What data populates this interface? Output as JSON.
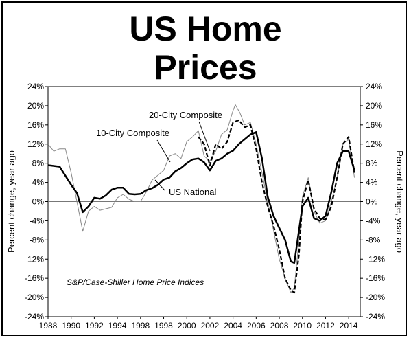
{
  "title_line1": "US Home",
  "title_line2": "Prices",
  "chart_data": {
    "type": "line",
    "title": "US Home Prices",
    "ylabel_left": "Percent change, year ago",
    "ylabel_right": "Percent change, year ago",
    "source_note": "S&P/Case-Shiller Home Price Indices",
    "ylim": [
      -24,
      24
    ],
    "y_ticks": [
      24,
      20,
      16,
      12,
      8,
      4,
      0,
      -4,
      -8,
      -12,
      -16,
      -20,
      -24
    ],
    "y_tick_labels": [
      "24%",
      "20%",
      "16%",
      "12%",
      "8%",
      "4%",
      "0%",
      "-4%",
      "-8%",
      "-12%",
      "-16%",
      "-20%",
      "-24%"
    ],
    "x_tick_labels": [
      "1988",
      "1990",
      "1992",
      "1994",
      "1998",
      "1998",
      "2000",
      "2002",
      "2004",
      "2006",
      "2008",
      "2010",
      "2012",
      "2014"
    ],
    "series": [
      {
        "name": "US National",
        "style": "solid-thick",
        "color": "#000000",
        "x": [
          1988,
          1989,
          1990,
          1990.5,
          1991,
          1991.5,
          1992,
          1992.5,
          1993,
          1993.5,
          1994,
          1994.5,
          1995,
          1995.5,
          1996,
          1996.5,
          1997,
          1997.5,
          1998,
          1998.5,
          1999,
          1999.5,
          2000,
          2000.5,
          2001,
          2001.5,
          2002,
          2002.5,
          2003,
          2003.5,
          2004,
          2004.5,
          2005,
          2005.5,
          2006,
          2006.5,
          2007,
          2007.5,
          2008,
          2008.5,
          2009,
          2009.3,
          2009.7,
          2010,
          2010.5,
          2011,
          2011.5,
          2012,
          2012.5,
          2013,
          2013.5,
          2014,
          2014.5
        ],
        "values": [
          7.6,
          7.3,
          3.5,
          1.8,
          -2.2,
          -1.0,
          0.8,
          0.6,
          1.3,
          2.5,
          2.9,
          2.9,
          1.6,
          1.5,
          1.6,
          2.4,
          2.8,
          3.5,
          4.6,
          5.0,
          6.3,
          7.0,
          8.0,
          8.8,
          9.0,
          8.2,
          6.5,
          8.5,
          9.0,
          10.0,
          10.6,
          12.0,
          13.0,
          14.0,
          14.5,
          9.0,
          1.0,
          -3.0,
          -5.5,
          -8.0,
          -12.5,
          -12.8,
          -6.0,
          -1.0,
          0.8,
          -3.5,
          -4.0,
          -3.0,
          2.0,
          8.0,
          10.5,
          10.5,
          6.5
        ]
      },
      {
        "name": "10-City Composite",
        "style": "solid-thin",
        "color": "#888888",
        "x": [
          1988,
          1988.5,
          1989,
          1989.5,
          1990,
          1990.5,
          1991,
          1991.5,
          1992,
          1992.5,
          1993,
          1993.5,
          1994,
          1994.5,
          1995,
          1995.5,
          1996,
          1996.5,
          1997,
          1997.5,
          1998,
          1998.5,
          1999,
          1999.5,
          2000,
          2000.5,
          2001,
          2001.5,
          2002,
          2002.5,
          2003,
          2003.5,
          2004,
          2004.2,
          2004.6,
          2005,
          2005.5,
          2006,
          2006.5,
          2007,
          2007.5,
          2008,
          2008.5,
          2009,
          2009.3,
          2009.7,
          2010,
          2010.5,
          2011,
          2011.5,
          2012,
          2012.5,
          2013,
          2013.5,
          2014,
          2014.5
        ],
        "values": [
          12.0,
          10.5,
          11.0,
          11.0,
          6.0,
          0.0,
          -6.2,
          -2.0,
          -1.0,
          -1.8,
          -1.5,
          -1.2,
          0.8,
          1.5,
          0.5,
          0.0,
          0.0,
          2.0,
          4.5,
          5.5,
          6.5,
          9.5,
          10.0,
          9.0,
          12.5,
          13.5,
          14.8,
          9.5,
          8.5,
          10.5,
          14.0,
          15.0,
          19.0,
          20.2,
          18.5,
          16.0,
          16.5,
          12.0,
          6.0,
          0.0,
          -6.0,
          -12.0,
          -16.0,
          -19.0,
          -18.0,
          -8.0,
          1.0,
          5.0,
          -2.0,
          -4.5,
          -4.0,
          0.0,
          5.0,
          12.0,
          13.0,
          5.0
        ]
      },
      {
        "name": "20-City Composite",
        "style": "dashed",
        "color": "#000000",
        "x": [
          2001,
          2001.5,
          2002,
          2002.5,
          2003,
          2003.5,
          2004,
          2004.5,
          2005,
          2005.5,
          2006,
          2006.5,
          2007,
          2007.5,
          2008,
          2008.5,
          2009,
          2009.3,
          2009.7,
          2010,
          2010.5,
          2011,
          2011.5,
          2012,
          2012.5,
          2013,
          2013.5,
          2014,
          2014.5
        ],
        "values": [
          13.5,
          12.0,
          7.5,
          12.0,
          11.0,
          12.5,
          16.5,
          17.0,
          15.5,
          16.0,
          11.0,
          4.0,
          -1.0,
          -5.0,
          -10.0,
          -16.0,
          -18.5,
          -19.0,
          -11.0,
          0.0,
          4.5,
          -1.5,
          -3.5,
          -3.8,
          -1.0,
          5.0,
          12.0,
          13.5,
          6.0
        ]
      }
    ],
    "annotations": [
      {
        "text": "20-City Composite",
        "series": "20-City Composite"
      },
      {
        "text": "10-City Composite",
        "series": "10-City Composite"
      },
      {
        "text": "US National",
        "series": "US National"
      }
    ],
    "grid": false,
    "zero_line": true
  }
}
